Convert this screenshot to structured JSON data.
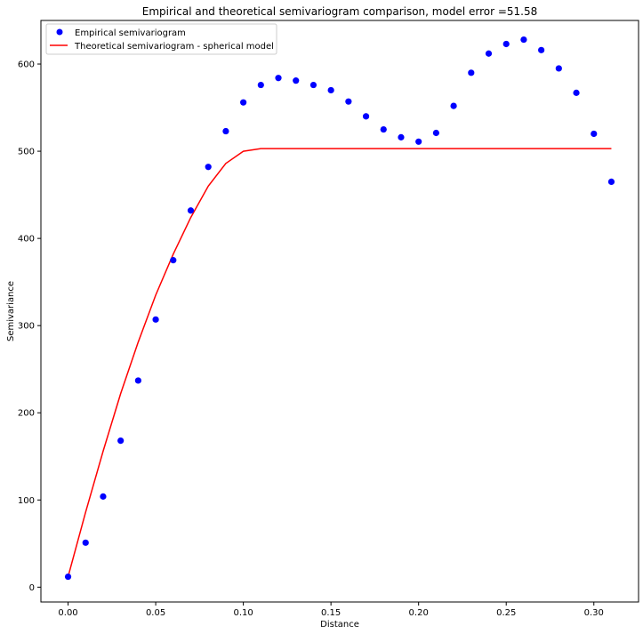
{
  "chart_data": {
    "type": "scatter",
    "title": "Empirical and theoretical semivariogram comparison, model error =51.58",
    "xlabel": "Distance",
    "ylabel": "Semivariance",
    "xlim": [
      -0.0155,
      0.3255
    ],
    "ylim": [
      -17,
      650
    ],
    "x_ticks": [
      0.0,
      0.05,
      0.1,
      0.15,
      0.2,
      0.25,
      0.3
    ],
    "x_tick_labels": [
      "0.00",
      "0.05",
      "0.10",
      "0.15",
      "0.20",
      "0.25",
      "0.30"
    ],
    "y_ticks": [
      0,
      100,
      200,
      300,
      400,
      500,
      600
    ],
    "y_tick_labels": [
      "0",
      "100",
      "200",
      "300",
      "400",
      "500",
      "600"
    ],
    "grid": false,
    "legend_position": "top-left",
    "series": [
      {
        "name": "Empirical semivariogram",
        "kind": "scatter",
        "color": "#0000ff",
        "x": [
          0.0,
          0.01,
          0.02,
          0.03,
          0.04,
          0.05,
          0.06,
          0.07,
          0.08,
          0.09,
          0.1,
          0.11,
          0.12,
          0.13,
          0.14,
          0.15,
          0.16,
          0.17,
          0.18,
          0.19,
          0.2,
          0.21,
          0.22,
          0.23,
          0.24,
          0.25,
          0.26,
          0.27,
          0.28,
          0.29,
          0.3,
          0.31
        ],
        "y": [
          12,
          51,
          104,
          168,
          237,
          307,
          375,
          432,
          482,
          523,
          556,
          576,
          584,
          581,
          576,
          570,
          557,
          540,
          525,
          516,
          511,
          521,
          552,
          590,
          612,
          623,
          628,
          616,
          595,
          567,
          520,
          465
        ]
      },
      {
        "name": "Theoretical semivariogram - spherical model",
        "kind": "line",
        "color": "#ff0000",
        "x": [
          0.0,
          0.01,
          0.02,
          0.03,
          0.04,
          0.05,
          0.06,
          0.07,
          0.08,
          0.09,
          0.1,
          0.11,
          0.12,
          0.13,
          0.14,
          0.15,
          0.16,
          0.17,
          0.18,
          0.19,
          0.2,
          0.21,
          0.22,
          0.23,
          0.24,
          0.25,
          0.26,
          0.27,
          0.28,
          0.29,
          0.3,
          0.31
        ],
        "y": [
          12,
          86,
          156,
          222,
          281,
          335,
          382,
          424,
          460,
          486,
          500,
          503,
          503,
          503,
          503,
          503,
          503,
          503,
          503,
          503,
          503,
          503,
          503,
          503,
          503,
          503,
          503,
          503,
          503,
          503,
          503,
          503
        ]
      }
    ]
  }
}
